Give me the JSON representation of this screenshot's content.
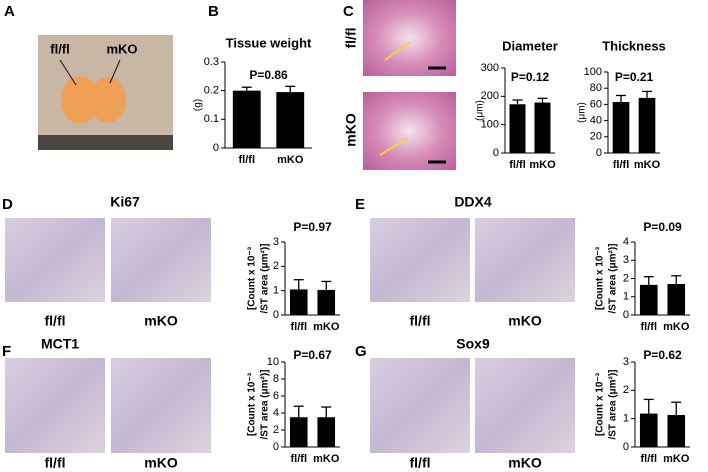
{
  "panels": {
    "a": "A",
    "b": "B",
    "c": "C",
    "d": "D",
    "e": "E",
    "f": "F",
    "g": "G"
  },
  "photo_labels": {
    "left": "fl/fl",
    "right": "mKO"
  },
  "histology_labels": {
    "top": "fl/fl",
    "bottom": "mKO"
  },
  "stain_panels": {
    "d": {
      "stain": "Ki67",
      "left": "fl/fl",
      "right": "mKO"
    },
    "e": {
      "stain": "DDX4",
      "left": "fl/fl",
      "right": "mKO"
    },
    "f": {
      "stain": "MCT1",
      "left": "fl/fl",
      "right": "mKO"
    },
    "g": {
      "stain": "Sox9",
      "left": "fl/fl",
      "right": "mKO"
    }
  },
  "chart_data": [
    {
      "type": "bar",
      "title": "Tissue weight",
      "annotation": "P=0.86",
      "y_label": "(g)",
      "categories": [
        "fl/fl",
        "mKO"
      ],
      "values": [
        0.2,
        0.195
      ],
      "errors": [
        0.012,
        0.02
      ],
      "ylim": [
        0,
        0.3
      ],
      "yticks": [
        0,
        0.1,
        0.2,
        0.3
      ],
      "color": "#000000"
    },
    {
      "type": "bar",
      "title": "Diameter",
      "annotation": "P=0.12",
      "y_label": "(μm)",
      "categories": [
        "fl/fl",
        "mKO"
      ],
      "values": [
        172,
        178
      ],
      "errors": [
        15,
        15
      ],
      "ylim": [
        0,
        300
      ],
      "yticks": [
        0,
        100,
        200,
        300
      ],
      "color": "#000000"
    },
    {
      "type": "bar",
      "title": "Thickness",
      "annotation": "P=0.21",
      "y_label": "(μm)",
      "categories": [
        "fl/fl",
        "mKO"
      ],
      "values": [
        63,
        68
      ],
      "errors": [
        8,
        8
      ],
      "ylim": [
        0,
        100
      ],
      "yticks": [
        0,
        20,
        40,
        60,
        80,
        100
      ],
      "color": "#000000"
    },
    {
      "type": "bar",
      "annotation": "P=0.97",
      "y_label": [
        "[Count x 10⁻³",
        "/ST area (μm²)]"
      ],
      "categories": [
        "fl/fl",
        "mKO"
      ],
      "values": [
        1.05,
        1.03
      ],
      "errors": [
        0.4,
        0.35
      ],
      "ylim": [
        0,
        3
      ],
      "yticks": [
        0,
        1,
        2,
        3
      ],
      "color": "#000000"
    },
    {
      "type": "bar",
      "annotation": "P=0.09",
      "y_label": [
        "[Count x 10⁻³",
        "/ST area (μm²)]"
      ],
      "categories": [
        "fl/fl",
        "mKO"
      ],
      "values": [
        1.65,
        1.7
      ],
      "errors": [
        0.45,
        0.45
      ],
      "ylim": [
        0,
        4
      ],
      "yticks": [
        0,
        1,
        2,
        3,
        4
      ],
      "color": "#000000"
    },
    {
      "type": "bar",
      "annotation": "P=0.67",
      "y_label": [
        "[Count x 10⁻³",
        "/ST area (μm²)]"
      ],
      "categories": [
        "fl/fl",
        "mKO"
      ],
      "values": [
        3.5,
        3.5
      ],
      "errors": [
        1.3,
        1.2
      ],
      "ylim": [
        0,
        10
      ],
      "yticks": [
        0,
        2,
        4,
        6,
        8,
        10
      ],
      "color": "#000000"
    },
    {
      "type": "bar",
      "annotation": "P=0.62",
      "y_label": [
        "[Count x 10⁻³",
        "/ST area (μm²)]"
      ],
      "categories": [
        "fl/fl",
        "mKO"
      ],
      "values": [
        1.18,
        1.13
      ],
      "errors": [
        0.5,
        0.45
      ],
      "ylim": [
        0,
        3
      ],
      "yticks": [
        0,
        1,
        2,
        3
      ],
      "color": "#000000"
    }
  ]
}
